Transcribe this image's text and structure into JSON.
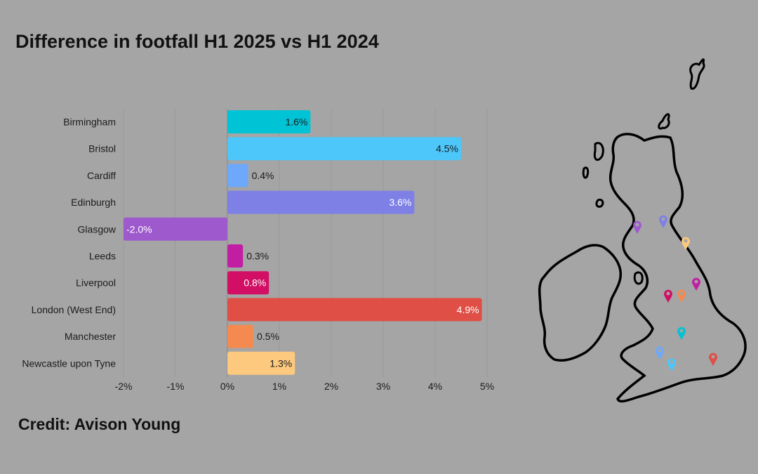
{
  "title": "Difference in footfall H1 2025 vs H1 2024",
  "credit": "Credit: Avison Young",
  "map_label": "uk-map",
  "chart_data": {
    "type": "bar",
    "orientation": "horizontal",
    "title": "Difference in footfall H1 2025 vs H1 2024",
    "xlabel": "",
    "ylabel": "",
    "xlim": [
      -2,
      5
    ],
    "xticks": [
      -2,
      -1,
      0,
      1,
      2,
      3,
      4,
      5
    ],
    "xtick_labels": [
      "-2%",
      "-1%",
      "0%",
      "1%",
      "2%",
      "3%",
      "4%",
      "5%"
    ],
    "grid": "vertical",
    "categories": [
      "Birmingham",
      "Bristol",
      "Cardiff",
      "Edinburgh",
      "Glasgow",
      "Leeds",
      "Liverpool",
      "London (West End)",
      "Manchester",
      "Newcastle upon Tyne"
    ],
    "values": [
      1.6,
      4.5,
      0.4,
      3.6,
      -2.0,
      0.3,
      0.8,
      4.9,
      0.5,
      1.3
    ],
    "value_labels": [
      "1.6%",
      "4.5%",
      "0.4%",
      "3.6%",
      "-2.0%",
      "0.3%",
      "0.8%",
      "4.9%",
      "0.5%",
      "1.3%"
    ],
    "colors": [
      "#00c3d6",
      "#4dc6fa",
      "#6ea8fa",
      "#7e80e6",
      "#9e59cc",
      "#c21ea4",
      "#d20f65",
      "#df4f46",
      "#f48a4f",
      "#fdc97e"
    ]
  }
}
